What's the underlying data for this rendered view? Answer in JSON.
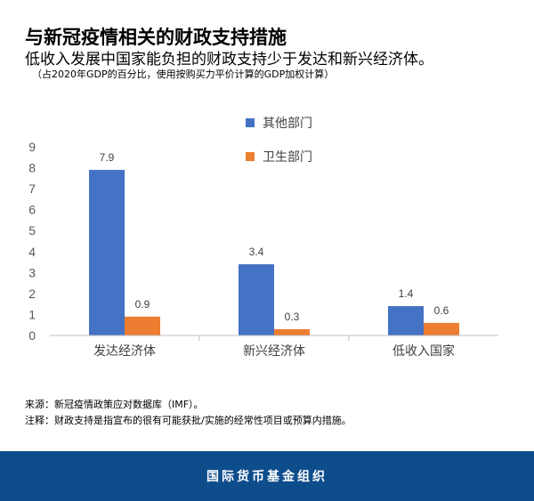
{
  "header": {
    "title": "与新冠疫情相关的财政支持措施",
    "subtitle": "低收入发展中国家能负担的财政支持少于发达和新兴经济体。",
    "note": "（占2020年GDP的百分比，使用按购买力平价计算的GDP加权计算）"
  },
  "chart_data": {
    "type": "bar",
    "categories": [
      "发达经济体",
      "新兴经济体",
      "低收入国家"
    ],
    "series": [
      {
        "name": "其他部门",
        "values": [
          7.9,
          3.4,
          1.4
        ],
        "color": "#4472c4"
      },
      {
        "name": "卫生部门",
        "values": [
          0.9,
          0.3,
          0.6
        ],
        "color": "#ed7d31"
      }
    ],
    "data_labels": [
      [
        "7.9",
        "3.4",
        "1.4"
      ],
      [
        "0.9",
        "0.3",
        "0.6"
      ]
    ],
    "ylim": [
      0,
      9
    ],
    "yticks": [
      "0",
      "1",
      "2",
      "3",
      "4",
      "5",
      "6",
      "7",
      "8",
      "9"
    ],
    "legend_position": "top-right",
    "grid": false
  },
  "footer": {
    "source": "来源：新冠疫情政策应对数据库（IMF）。",
    "footnote": "注释：财政支持是指宣布的很有可能获批/实施的经常性项目或预算内措施。",
    "org": "国际货币基金组织"
  }
}
